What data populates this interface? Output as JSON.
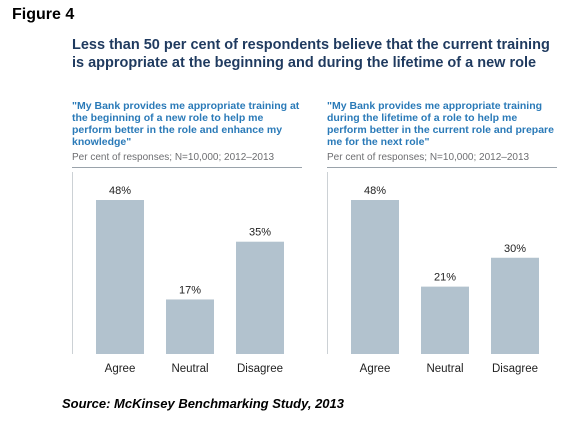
{
  "figure_label": "Figure 4",
  "headline": "Less than 50 per cent of respondents believe that the current training is appropriate at the beginning and during the lifetime of a new role",
  "source": "Source: McKinsey Benchmarking Study, 2013",
  "colors": {
    "bar": "#b2c2ce",
    "quote": "#2a7ab8",
    "headline": "#1f3a5f",
    "axis": "#9aa3ab"
  },
  "chart_data": [
    {
      "type": "bar",
      "title": "\"My Bank provides me appropriate training at the beginning of a new role to help me perform better in the role and enhance my knowledge\"",
      "subtitle": "Per cent of responses; N=10,000; 2012–2013",
      "categories": [
        "Agree",
        "Neutral",
        "Disagree"
      ],
      "values": [
        48,
        17,
        35
      ],
      "value_labels": [
        "48%",
        "17%",
        "35%"
      ],
      "ylim": [
        0,
        48
      ],
      "grid": false
    },
    {
      "type": "bar",
      "title": "\"My Bank provides me appropriate training during the lifetime of a role to help me perform better in the current role and prepare me for the next role\"",
      "subtitle": "Per cent of responses; N=10,000; 2012–2013",
      "categories": [
        "Agree",
        "Neutral",
        "Disagree"
      ],
      "values": [
        48,
        21,
        30
      ],
      "value_labels": [
        "48%",
        "21%",
        "30%"
      ],
      "ylim": [
        0,
        48
      ],
      "grid": false
    }
  ]
}
